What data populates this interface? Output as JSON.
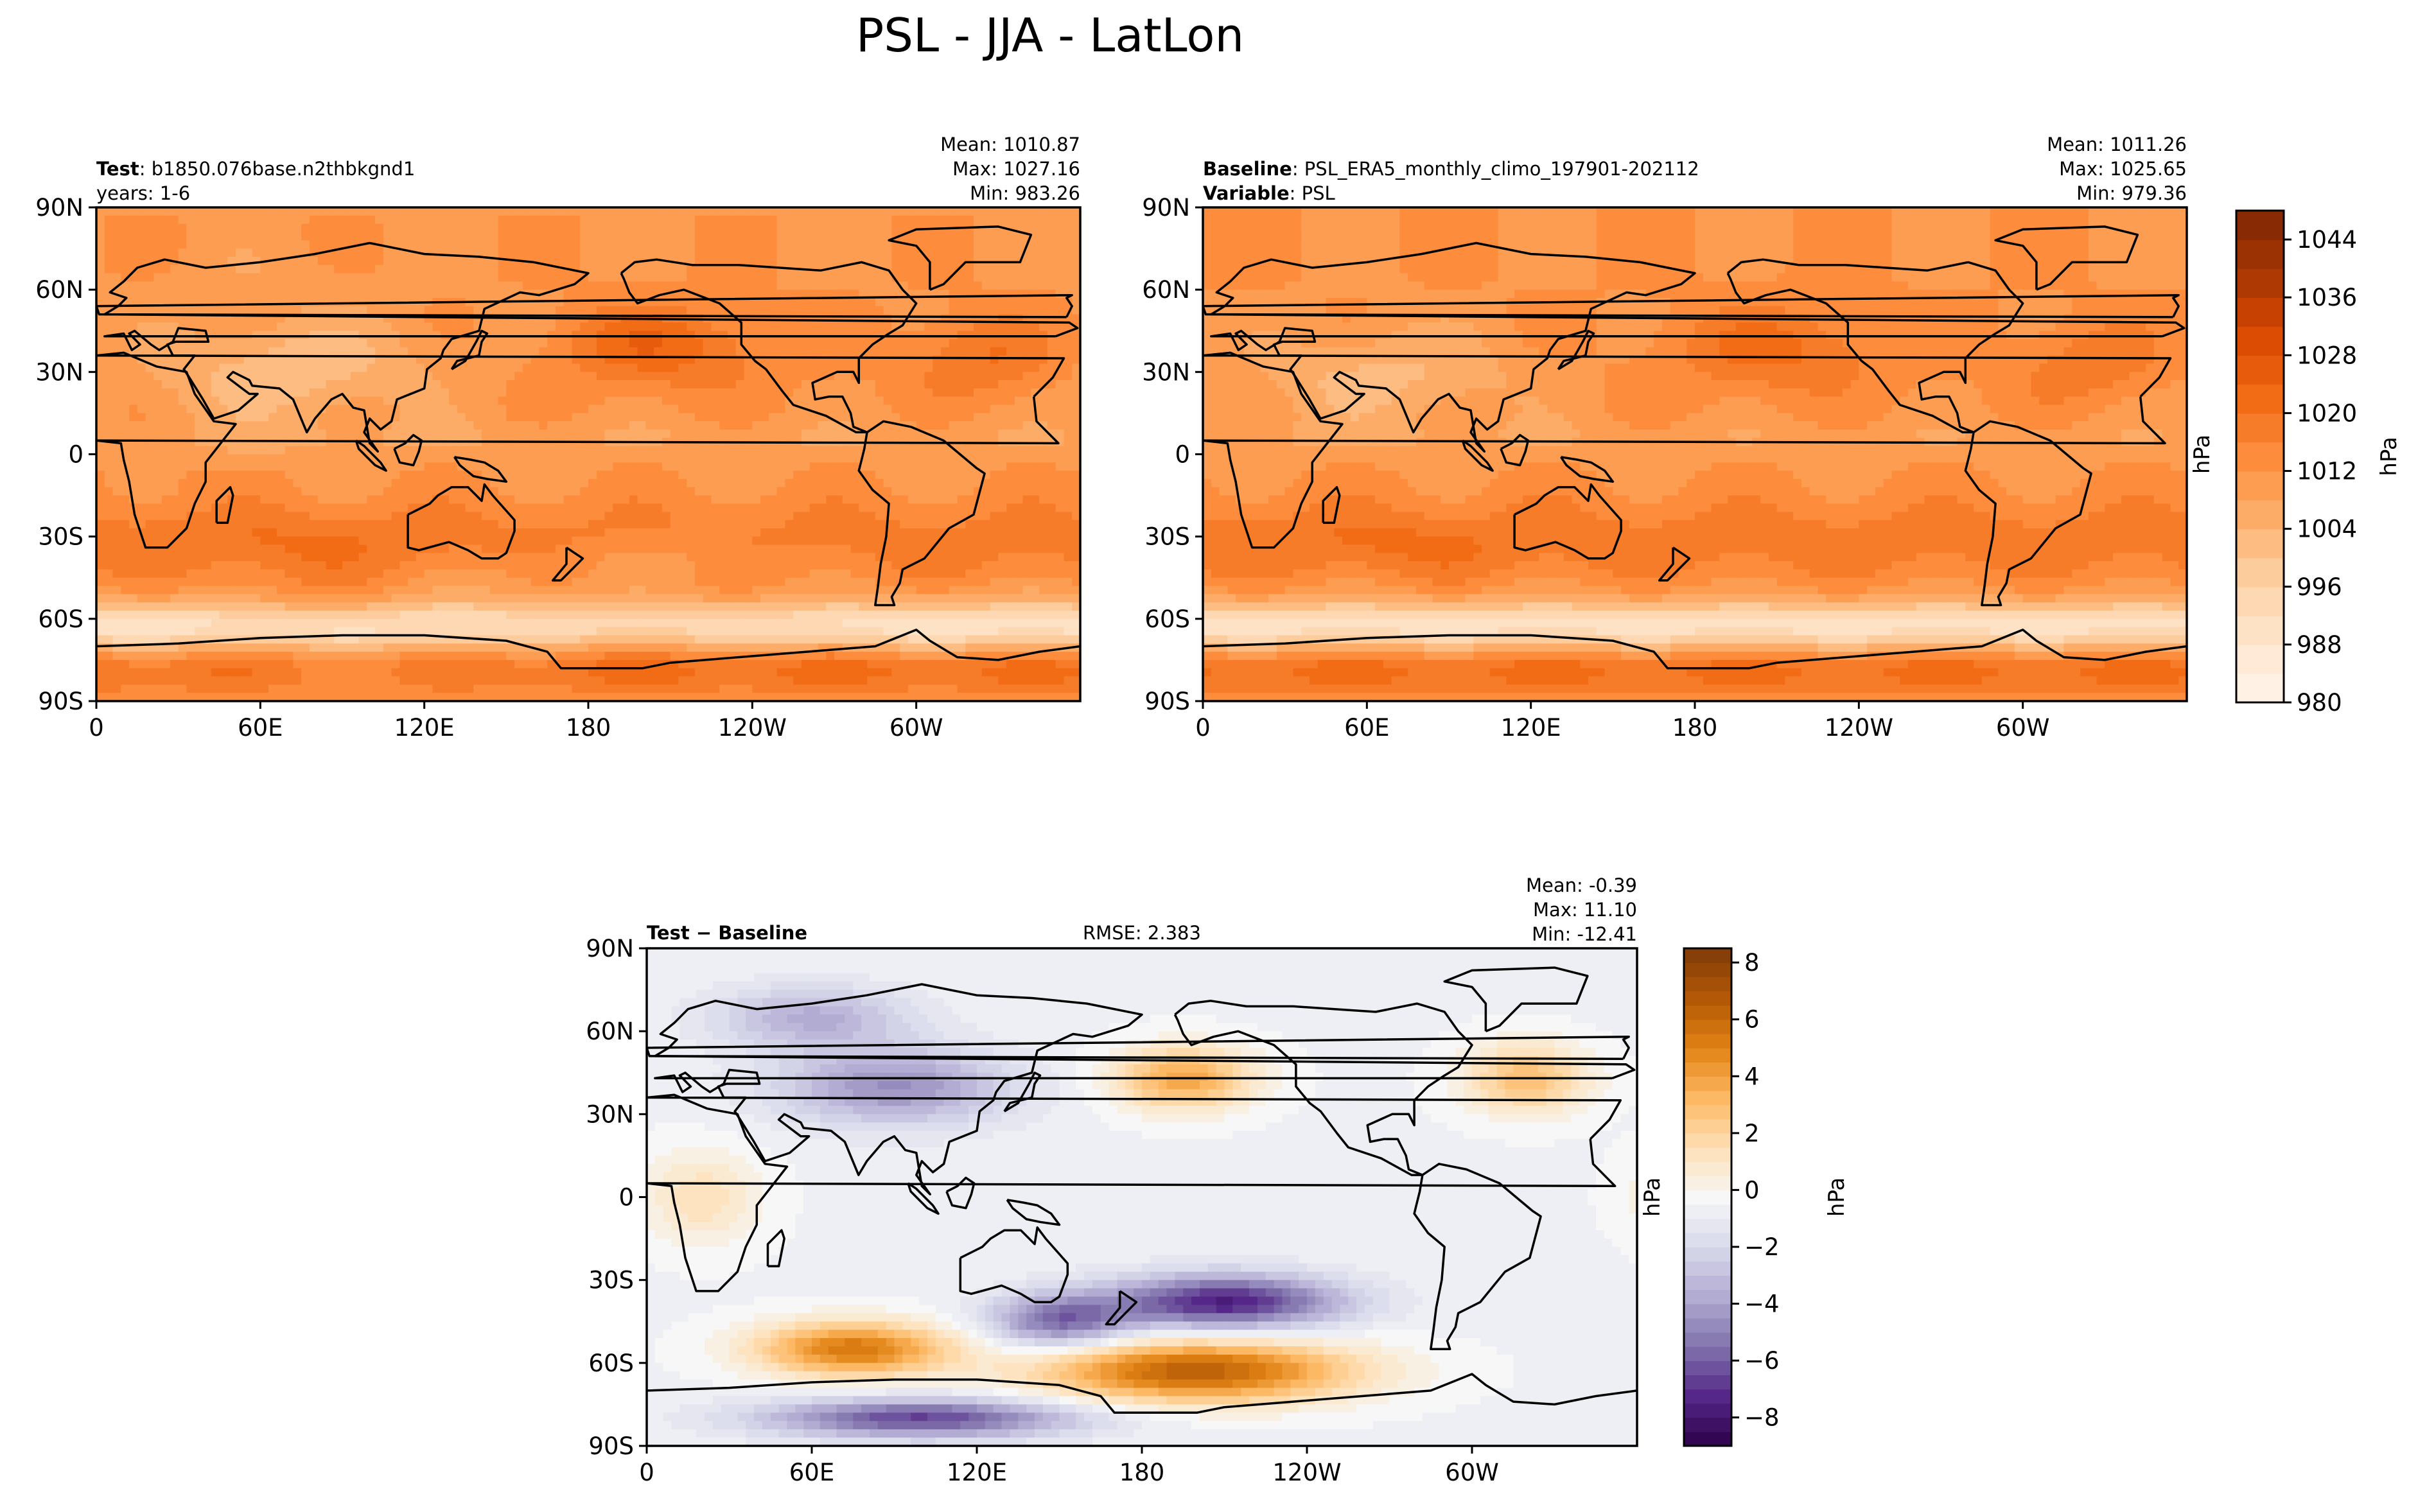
{
  "figure_title": "PSL - JJA - LatLon",
  "colors": {
    "sequential": [
      "#fff5eb",
      "#fee6ce",
      "#fdd0a2",
      "#fdae6b",
      "#fd8d3c",
      "#f16913",
      "#d94801",
      "#a63603",
      "#7f2704"
    ],
    "diverging": [
      "#2d004b",
      "#542788",
      "#8073ac",
      "#b2abd2",
      "#d8daeb",
      "#f7f7f7",
      "#fee0b6",
      "#fdb863",
      "#e08214",
      "#b35806",
      "#7f3b08"
    ],
    "coast": "#000000"
  },
  "panels": [
    {
      "id": "test",
      "label_bold": "Test",
      "label_text": ": b1850.076base.n2thbkgnd1",
      "label2_bold": "",
      "label2_text": "years: 1-6",
      "center_text": "",
      "stats": [
        "Mean: 1010.87",
        "Max: 1027.16",
        "Min: 983.26"
      ],
      "ylabel": "",
      "field": "test"
    },
    {
      "id": "baseline",
      "label_bold": "Baseline",
      "label_text": ": PSL_ERA5_monthly_climo_197901-202112",
      "label2_bold": "Variable",
      "label2_text": ": PSL",
      "center_text": "",
      "stats": [
        "Mean: 1011.26",
        "Max: 1025.65",
        "Min: 979.36"
      ],
      "ylabel": "hPa",
      "field": "baseline"
    },
    {
      "id": "diff",
      "label_bold": "Test − Baseline",
      "label_text": "",
      "label2_bold": "",
      "label2_text": "",
      "center_text": "RMSE: 2.383",
      "stats": [
        "Mean: -0.39",
        "Max: 11.10",
        "Min: -12.41"
      ],
      "ylabel": "hPa",
      "field": "diff"
    }
  ],
  "colorbars": [
    {
      "id": "abs",
      "label": "hPa",
      "min": 980,
      "max": 1048,
      "ticks": [
        "1044",
        "1036",
        "1028",
        "1020",
        "1012",
        "1004",
        "996",
        "988",
        "980"
      ],
      "tick_values": [
        1044,
        1036,
        1028,
        1020,
        1012,
        1004,
        996,
        988,
        980
      ]
    },
    {
      "id": "diff",
      "label": "hPa",
      "min": -9,
      "max": 8.5,
      "ticks": [
        "8",
        "6",
        "4",
        "2",
        "0",
        "−2",
        "−4",
        "−6",
        "−8"
      ],
      "tick_values": [
        8,
        6,
        4,
        2,
        0,
        -2,
        -4,
        -6,
        -8
      ]
    }
  ],
  "axes": {
    "y_ticks": [
      "90N",
      "60N",
      "30N",
      "0",
      "30S",
      "60S",
      "90S"
    ],
    "y_tick_values": [
      90,
      60,
      30,
      0,
      -30,
      -60,
      -90
    ],
    "x_ticks": [
      "0",
      "60E",
      "120E",
      "180",
      "120W",
      "60W"
    ],
    "x_tick_values": [
      0,
      60,
      120,
      180,
      240,
      300
    ],
    "xlim": [
      0,
      360
    ],
    "ylim": [
      -90,
      90
    ]
  },
  "chart_data": [
    {
      "type": "heatmap",
      "title": "Test: b1850.076base.n2thbkgnd1, years: 1-6",
      "variable": "PSL",
      "units": "hPa",
      "mean": 1010.87,
      "max": 1027.16,
      "min": 983.26,
      "xlim": [
        0,
        360
      ],
      "ylim": [
        -90,
        90
      ],
      "clim": [
        980,
        1048
      ]
    },
    {
      "type": "heatmap",
      "title": "Baseline: PSL_ERA5_monthly_climo_197901-202112",
      "variable": "PSL",
      "units": "hPa",
      "mean": 1011.26,
      "max": 1025.65,
      "min": 979.36,
      "xlim": [
        0,
        360
      ],
      "ylim": [
        -90,
        90
      ],
      "clim": [
        980,
        1048
      ]
    },
    {
      "type": "heatmap",
      "title": "Test − Baseline",
      "units": "hPa",
      "rmse": 2.383,
      "mean": -0.39,
      "max": 11.1,
      "min": -12.41,
      "xlim": [
        0,
        360
      ],
      "ylim": [
        -90,
        90
      ],
      "clim": [
        -9,
        8.5
      ]
    }
  ]
}
